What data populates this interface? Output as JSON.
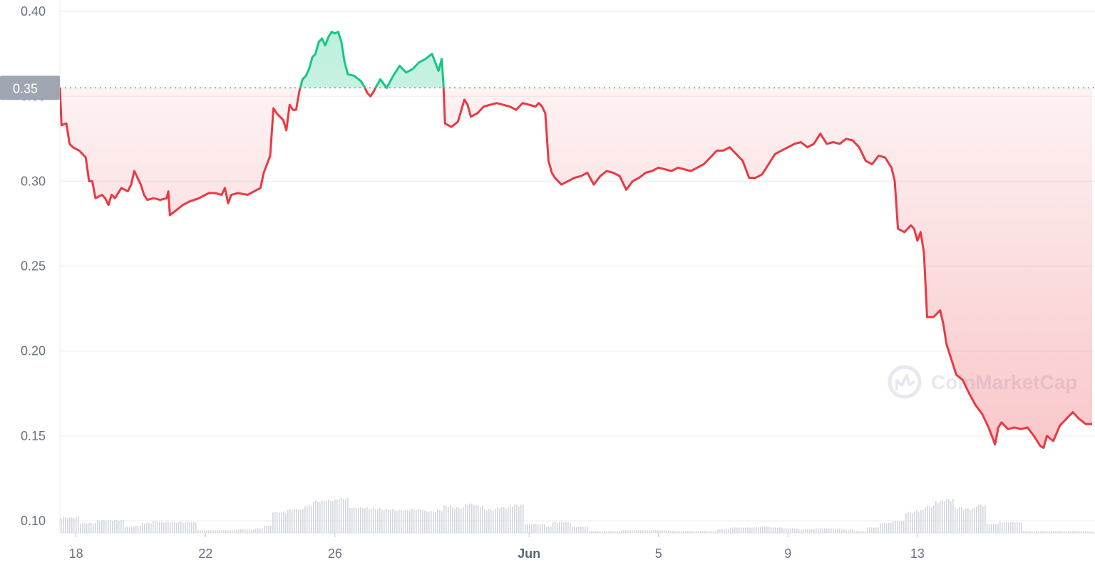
{
  "chart_data": {
    "type": "area",
    "y_ticks": [
      "0.10",
      "0.15",
      "0.20",
      "0.25",
      "0.30",
      "0.35",
      "0.40"
    ],
    "x_ticks": [
      {
        "label": "18",
        "day": 18,
        "bold": false
      },
      {
        "label": "22",
        "day": 22,
        "bold": false
      },
      {
        "label": "26",
        "day": 26,
        "bold": false
      },
      {
        "label": "Jun",
        "day": 32,
        "bold": true
      },
      {
        "label": "5",
        "day": 36,
        "bold": false
      },
      {
        "label": "9",
        "day": 40,
        "bold": false
      },
      {
        "label": "13",
        "day": 44,
        "bold": false
      }
    ],
    "ylim": [
      0.1,
      0.4
    ],
    "baseline_value": 0.355,
    "baseline_label": "0.35",
    "colors": {
      "up": "#16c784",
      "down": "#ea3943",
      "volume": "#d3d7de",
      "grid": "#eff2f5",
      "badge": "#a0a6b1"
    },
    "series": [
      {
        "values": [
          [
            17.5,
            0.355
          ],
          [
            17.55,
            0.333
          ],
          [
            17.7,
            0.334
          ],
          [
            17.8,
            0.322
          ],
          [
            17.9,
            0.32
          ],
          [
            18.1,
            0.318
          ],
          [
            18.3,
            0.314
          ],
          [
            18.4,
            0.3
          ],
          [
            18.5,
            0.3
          ],
          [
            18.6,
            0.29
          ],
          [
            18.8,
            0.292
          ],
          [
            18.9,
            0.29
          ],
          [
            19.0,
            0.286
          ],
          [
            19.1,
            0.292
          ],
          [
            19.2,
            0.29
          ],
          [
            19.4,
            0.296
          ],
          [
            19.6,
            0.294
          ],
          [
            19.7,
            0.298
          ],
          [
            19.8,
            0.306
          ],
          [
            19.9,
            0.302
          ],
          [
            20.0,
            0.298
          ],
          [
            20.1,
            0.292
          ],
          [
            20.2,
            0.289
          ],
          [
            20.4,
            0.29
          ],
          [
            20.6,
            0.289
          ],
          [
            20.8,
            0.29
          ],
          [
            20.85,
            0.294
          ],
          [
            20.9,
            0.28
          ],
          [
            21.1,
            0.283
          ],
          [
            21.3,
            0.286
          ],
          [
            21.5,
            0.288
          ],
          [
            21.8,
            0.29
          ],
          [
            22.1,
            0.293
          ],
          [
            22.3,
            0.293
          ],
          [
            22.5,
            0.292
          ],
          [
            22.6,
            0.296
          ],
          [
            22.7,
            0.287
          ],
          [
            22.8,
            0.292
          ],
          [
            23.0,
            0.293
          ],
          [
            23.3,
            0.292
          ],
          [
            23.5,
            0.294
          ],
          [
            23.7,
            0.296
          ],
          [
            23.8,
            0.305
          ],
          [
            23.9,
            0.31
          ],
          [
            24.0,
            0.315
          ],
          [
            24.1,
            0.343
          ],
          [
            24.2,
            0.34
          ],
          [
            24.3,
            0.338
          ],
          [
            24.4,
            0.336
          ],
          [
            24.5,
            0.33
          ],
          [
            24.6,
            0.345
          ],
          [
            24.7,
            0.342
          ],
          [
            24.8,
            0.342
          ],
          [
            24.9,
            0.353
          ],
          [
            25.0,
            0.36
          ],
          [
            25.1,
            0.362
          ],
          [
            25.2,
            0.366
          ],
          [
            25.3,
            0.373
          ],
          [
            25.4,
            0.375
          ],
          [
            25.5,
            0.382
          ],
          [
            25.6,
            0.384
          ],
          [
            25.7,
            0.38
          ],
          [
            25.8,
            0.385
          ],
          [
            25.9,
            0.388
          ],
          [
            26.0,
            0.387
          ],
          [
            26.1,
            0.388
          ],
          [
            26.2,
            0.382
          ],
          [
            26.3,
            0.37
          ],
          [
            26.4,
            0.363
          ],
          [
            26.6,
            0.362
          ],
          [
            26.8,
            0.359
          ],
          [
            26.9,
            0.356
          ],
          [
            27.0,
            0.352
          ],
          [
            27.1,
            0.35
          ],
          [
            27.2,
            0.353
          ],
          [
            27.4,
            0.36
          ],
          [
            27.6,
            0.355
          ],
          [
            27.8,
            0.362
          ],
          [
            28.0,
            0.368
          ],
          [
            28.2,
            0.364
          ],
          [
            28.4,
            0.366
          ],
          [
            28.6,
            0.37
          ],
          [
            28.8,
            0.372
          ],
          [
            29.0,
            0.375
          ],
          [
            29.1,
            0.37
          ],
          [
            29.2,
            0.365
          ],
          [
            29.3,
            0.372
          ],
          [
            29.35,
            0.358
          ],
          [
            29.4,
            0.334
          ],
          [
            29.6,
            0.332
          ],
          [
            29.8,
            0.335
          ],
          [
            30.0,
            0.348
          ],
          [
            30.1,
            0.345
          ],
          [
            30.2,
            0.338
          ],
          [
            30.4,
            0.34
          ],
          [
            30.6,
            0.344
          ],
          [
            30.8,
            0.345
          ],
          [
            31.0,
            0.346
          ],
          [
            31.2,
            0.345
          ],
          [
            31.4,
            0.344
          ],
          [
            31.6,
            0.342
          ],
          [
            31.8,
            0.346
          ],
          [
            32.0,
            0.345
          ],
          [
            32.2,
            0.344
          ],
          [
            32.3,
            0.346
          ],
          [
            32.4,
            0.344
          ],
          [
            32.5,
            0.34
          ],
          [
            32.6,
            0.312
          ],
          [
            32.7,
            0.305
          ],
          [
            32.8,
            0.302
          ],
          [
            33.0,
            0.298
          ],
          [
            33.2,
            0.3
          ],
          [
            33.4,
            0.302
          ],
          [
            33.6,
            0.303
          ],
          [
            33.8,
            0.305
          ],
          [
            34.0,
            0.298
          ],
          [
            34.2,
            0.303
          ],
          [
            34.4,
            0.306
          ],
          [
            34.6,
            0.305
          ],
          [
            34.8,
            0.303
          ],
          [
            35.0,
            0.295
          ],
          [
            35.2,
            0.3
          ],
          [
            35.4,
            0.302
          ],
          [
            35.6,
            0.305
          ],
          [
            35.8,
            0.306
          ],
          [
            36.0,
            0.308
          ],
          [
            36.2,
            0.307
          ],
          [
            36.4,
            0.306
          ],
          [
            36.6,
            0.308
          ],
          [
            36.8,
            0.307
          ],
          [
            37.0,
            0.306
          ],
          [
            37.2,
            0.308
          ],
          [
            37.4,
            0.31
          ],
          [
            37.6,
            0.314
          ],
          [
            37.8,
            0.318
          ],
          [
            38.0,
            0.318
          ],
          [
            38.2,
            0.32
          ],
          [
            38.4,
            0.316
          ],
          [
            38.6,
            0.312
          ],
          [
            38.8,
            0.302
          ],
          [
            39.0,
            0.302
          ],
          [
            39.2,
            0.304
          ],
          [
            39.4,
            0.31
          ],
          [
            39.6,
            0.316
          ],
          [
            39.8,
            0.318
          ],
          [
            40.0,
            0.32
          ],
          [
            40.2,
            0.322
          ],
          [
            40.4,
            0.323
          ],
          [
            40.6,
            0.32
          ],
          [
            40.8,
            0.322
          ],
          [
            41.0,
            0.328
          ],
          [
            41.2,
            0.322
          ],
          [
            41.4,
            0.323
          ],
          [
            41.6,
            0.322
          ],
          [
            41.8,
            0.325
          ],
          [
            42.0,
            0.324
          ],
          [
            42.2,
            0.32
          ],
          [
            42.4,
            0.312
          ],
          [
            42.6,
            0.31
          ],
          [
            42.8,
            0.315
          ],
          [
            43.0,
            0.314
          ],
          [
            43.2,
            0.308
          ],
          [
            43.3,
            0.3
          ],
          [
            43.4,
            0.272
          ],
          [
            43.6,
            0.27
          ],
          [
            43.8,
            0.274
          ],
          [
            43.9,
            0.272
          ],
          [
            44.0,
            0.265
          ],
          [
            44.1,
            0.27
          ],
          [
            44.2,
            0.258
          ],
          [
            44.3,
            0.22
          ],
          [
            44.5,
            0.22
          ],
          [
            44.7,
            0.224
          ],
          [
            44.8,
            0.216
          ],
          [
            44.9,
            0.204
          ],
          [
            45.0,
            0.198
          ],
          [
            45.2,
            0.186
          ],
          [
            45.4,
            0.183
          ],
          [
            45.6,
            0.175
          ],
          [
            45.8,
            0.168
          ],
          [
            46.0,
            0.163
          ],
          [
            46.2,
            0.155
          ],
          [
            46.3,
            0.15
          ],
          [
            46.4,
            0.145
          ],
          [
            46.5,
            0.155
          ],
          [
            46.6,
            0.158
          ],
          [
            46.8,
            0.154
          ],
          [
            47.0,
            0.155
          ],
          [
            47.2,
            0.154
          ],
          [
            47.4,
            0.155
          ],
          [
            47.6,
            0.15
          ],
          [
            47.8,
            0.144
          ],
          [
            47.9,
            0.143
          ],
          [
            48.0,
            0.15
          ],
          [
            48.2,
            0.147
          ],
          [
            48.4,
            0.156
          ],
          [
            48.6,
            0.16
          ],
          [
            48.8,
            0.164
          ],
          [
            49.0,
            0.16
          ],
          [
            49.2,
            0.157
          ],
          [
            49.4,
            0.157
          ]
        ]
      }
    ],
    "volume": [
      [
        17.5,
        0.17
      ],
      [
        18.0,
        0.18
      ],
      [
        18.1,
        0.11
      ],
      [
        18.5,
        0.11
      ],
      [
        18.6,
        0.14
      ],
      [
        19.5,
        0.07
      ],
      [
        19.8,
        0.08
      ],
      [
        20.0,
        0.11
      ],
      [
        20.3,
        0.13
      ],
      [
        20.5,
        0.12
      ],
      [
        21.0,
        0.12
      ],
      [
        21.5,
        0.12
      ],
      [
        21.7,
        0.03
      ],
      [
        22.2,
        0.03
      ],
      [
        22.5,
        0.03
      ],
      [
        23.0,
        0.04
      ],
      [
        23.5,
        0.05
      ],
      [
        23.8,
        0.08
      ],
      [
        24.0,
        0.23
      ],
      [
        24.5,
        0.26
      ],
      [
        25.0,
        0.3
      ],
      [
        25.3,
        0.35
      ],
      [
        25.6,
        0.36
      ],
      [
        26.0,
        0.38
      ],
      [
        26.4,
        0.28
      ],
      [
        26.8,
        0.28
      ],
      [
        27.0,
        0.27
      ],
      [
        27.4,
        0.26
      ],
      [
        27.8,
        0.25
      ],
      [
        28.3,
        0.26
      ],
      [
        28.7,
        0.24
      ],
      [
        29.1,
        0.25
      ],
      [
        29.3,
        0.3
      ],
      [
        29.6,
        0.28
      ],
      [
        30.0,
        0.32
      ],
      [
        30.3,
        0.3
      ],
      [
        30.6,
        0.26
      ],
      [
        31.0,
        0.28
      ],
      [
        31.4,
        0.31
      ],
      [
        31.8,
        0.1
      ],
      [
        32.2,
        0.1
      ],
      [
        32.5,
        0.07
      ],
      [
        32.7,
        0.12
      ],
      [
        33.0,
        0.12
      ],
      [
        33.3,
        0.07
      ],
      [
        33.8,
        0.02
      ],
      [
        34.3,
        0.02
      ],
      [
        34.8,
        0.03
      ],
      [
        35.3,
        0.03
      ],
      [
        35.8,
        0.03
      ],
      [
        36.3,
        0.02
      ],
      [
        36.8,
        0.02
      ],
      [
        37.3,
        0.02
      ],
      [
        37.8,
        0.04
      ],
      [
        38.2,
        0.06
      ],
      [
        38.6,
        0.06
      ],
      [
        39.0,
        0.07
      ],
      [
        39.4,
        0.06
      ],
      [
        39.8,
        0.05
      ],
      [
        40.3,
        0.04
      ],
      [
        40.8,
        0.05
      ],
      [
        41.2,
        0.05
      ],
      [
        41.6,
        0.04
      ],
      [
        42.0,
        0.02
      ],
      [
        42.4,
        0.06
      ],
      [
        42.8,
        0.11
      ],
      [
        43.2,
        0.13
      ],
      [
        43.6,
        0.23
      ],
      [
        43.9,
        0.25
      ],
      [
        44.2,
        0.3
      ],
      [
        44.5,
        0.35
      ],
      [
        44.8,
        0.37
      ],
      [
        45.1,
        0.28
      ],
      [
        45.4,
        0.27
      ],
      [
        45.8,
        0.31
      ],
      [
        46.1,
        0.1
      ],
      [
        46.5,
        0.12
      ],
      [
        46.9,
        0.12
      ],
      [
        47.2,
        0.02
      ],
      [
        47.6,
        0.02
      ],
      [
        48.0,
        0.02
      ],
      [
        48.4,
        0.02
      ],
      [
        48.8,
        0.02
      ],
      [
        49.2,
        0.01
      ],
      [
        49.4,
        0.01
      ]
    ],
    "watermark": "CoinMarketCap"
  }
}
